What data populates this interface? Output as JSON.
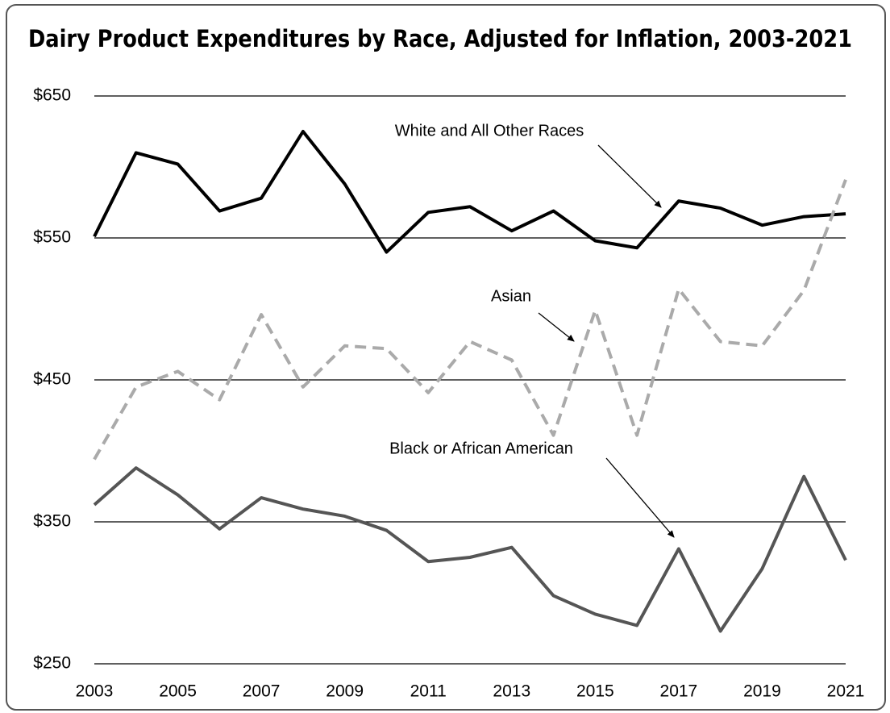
{
  "chart_data": {
    "type": "line",
    "title": "Dairy Product Expenditures by Race, Adjusted for Inflation, 2003-2021",
    "x": [
      2003,
      2004,
      2005,
      2006,
      2007,
      2008,
      2009,
      2010,
      2011,
      2012,
      2013,
      2014,
      2015,
      2016,
      2017,
      2018,
      2019,
      2020,
      2021
    ],
    "series": [
      {
        "name": "White and All Other Races",
        "color": "#000000",
        "dash": false,
        "values": [
          551,
          610,
          602,
          569,
          578,
          625,
          588,
          540,
          568,
          572,
          555,
          569,
          548,
          543,
          576,
          571,
          559,
          565,
          567
        ]
      },
      {
        "name": "Asian",
        "color": "#aaaaaa",
        "dash": true,
        "values": [
          394,
          445,
          456,
          436,
          496,
          445,
          474,
          472,
          441,
          477,
          464,
          411,
          499,
          411,
          514,
          477,
          474,
          513,
          591
        ]
      },
      {
        "name": "Black or African American",
        "color": "#555555",
        "dash": false,
        "values": [
          362,
          388,
          369,
          345,
          367,
          359,
          354,
          344,
          322,
          325,
          332,
          298,
          285,
          277,
          331,
          273,
          317,
          382,
          323
        ]
      }
    ],
    "xlim": [
      2003,
      2021
    ],
    "xticks": [
      2003,
      2005,
      2007,
      2009,
      2011,
      2013,
      2015,
      2017,
      2019,
      2021
    ],
    "ylim": [
      250,
      650
    ],
    "yticks": [
      {
        "value": 250,
        "label": "$250"
      },
      {
        "value": 350,
        "label": "$350"
      },
      {
        "value": 450,
        "label": "$450"
      },
      {
        "value": 550,
        "label": "$550"
      },
      {
        "value": 650,
        "label": "$650"
      }
    ],
    "grid": true
  }
}
